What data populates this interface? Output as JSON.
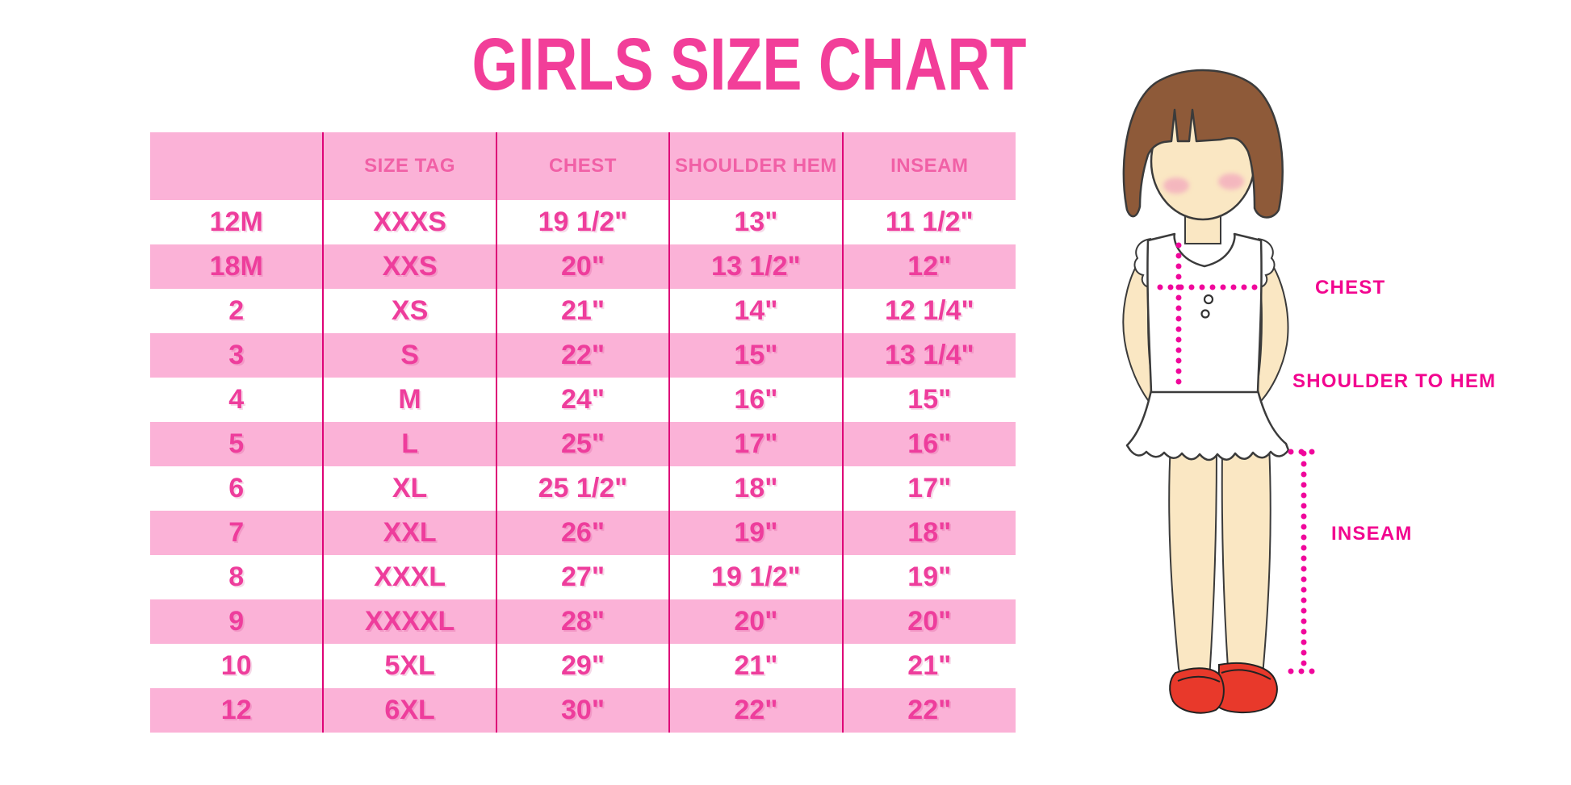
{
  "title": "GIRLS SIZE CHART",
  "chart_data": {
    "type": "table",
    "title": "GIRLS SIZE CHART",
    "columns": [
      "",
      "SIZE TAG",
      "CHEST",
      "SHOULDER HEM",
      "INSEAM"
    ],
    "rows": [
      [
        "12M",
        "XXXS",
        "19 1/2\"",
        "13\"",
        "11 1/2\""
      ],
      [
        "18M",
        "XXS",
        "20\"",
        "13 1/2\"",
        "12\""
      ],
      [
        "2",
        "XS",
        "21\"",
        "14\"",
        "12 1/4\""
      ],
      [
        "3",
        "S",
        "22\"",
        "15\"",
        "13 1/4\""
      ],
      [
        "4",
        "M",
        "24\"",
        "16\"",
        "15\""
      ],
      [
        "5",
        "L",
        "25\"",
        "17\"",
        "16\""
      ],
      [
        "6",
        "XL",
        "25 1/2\"",
        "18\"",
        "17\""
      ],
      [
        "7",
        "XXL",
        "26\"",
        "19\"",
        "18\""
      ],
      [
        "8",
        "XXXL",
        "27\"",
        "19 1/2\"",
        "19\""
      ],
      [
        "9",
        "XXXXL",
        "28\"",
        "20\"",
        "20\""
      ],
      [
        "10",
        "5XL",
        "29\"",
        "21\"",
        "21\""
      ],
      [
        "12",
        "6XL",
        "30\"",
        "22\"",
        "22\""
      ]
    ],
    "row_stripe_pattern": "alternating white/pink starting white after pink header",
    "legend_position": "none",
    "grid": "vertical column dividers only"
  },
  "figure_labels": {
    "chest": "CHEST",
    "shoulder_to_hem": "SHOULDER TO HEM",
    "inseam": "INSEAM"
  },
  "colors": {
    "title_pink": "#F23E99",
    "row_pink": "#FBB2D7",
    "divider_magenta": "#DE0477",
    "header_text_pink": "#F160A6",
    "cell_text_pink": "#EE3D9C",
    "label_magenta": "#F2058F",
    "dotted_line_pink": "#F0069B",
    "hair_brown": "#8E5A39",
    "skin": "#FAE7C3",
    "blush": "#F3A8BD",
    "shoe_red": "#E8392B"
  }
}
